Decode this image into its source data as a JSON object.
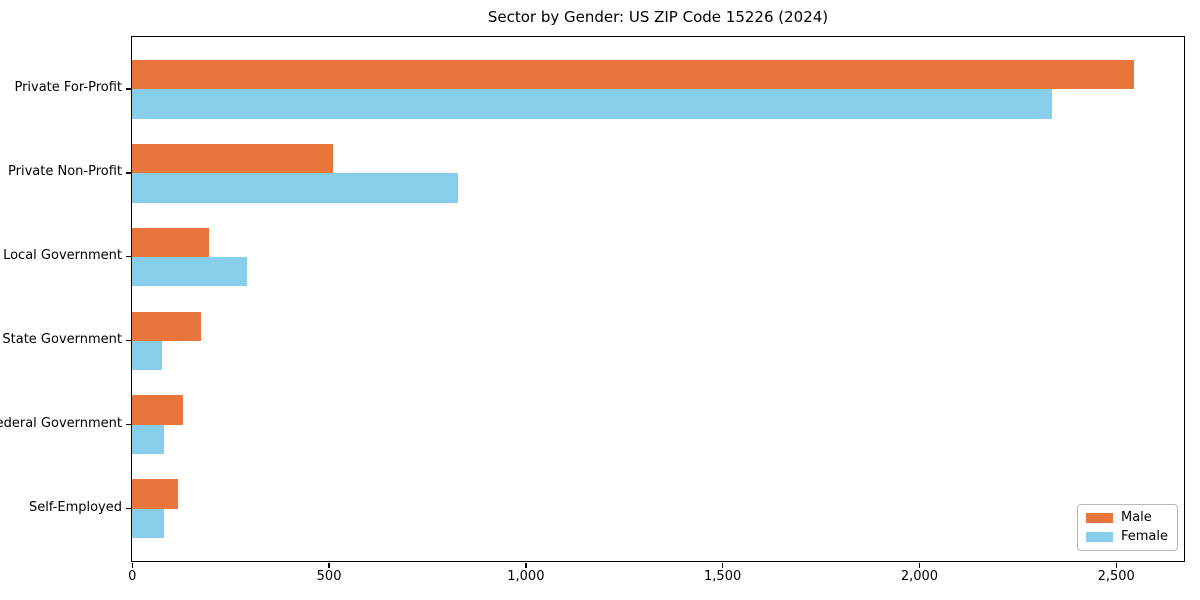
{
  "chart_data": {
    "type": "bar",
    "orientation": "horizontal",
    "title": "Sector by Gender: US ZIP Code 15226 (2024)",
    "categories": [
      "Private For-Profit",
      "Private Non-Profit",
      "Local Government",
      "State Government",
      "Federal Government",
      "Self-Employed"
    ],
    "series": [
      {
        "name": "Male",
        "color": "#e8763c",
        "values": [
          2546,
          510,
          195,
          175,
          129,
          117
        ]
      },
      {
        "name": "Female",
        "color": "#87ceeb",
        "values": [
          2337,
          829,
          292,
          76,
          81,
          81
        ]
      }
    ],
    "xlabel": "",
    "ylabel": "",
    "xlim": [
      0,
      2673
    ],
    "xticks": [
      0,
      500,
      1000,
      1500,
      2000,
      2500
    ],
    "xtick_labels": [
      "0",
      "500",
      "1,000",
      "1,500",
      "2,000",
      "2,500"
    ],
    "legend_position": "lower right",
    "grid": false,
    "background_color": "#ffffff",
    "axis_color": "#000000"
  }
}
